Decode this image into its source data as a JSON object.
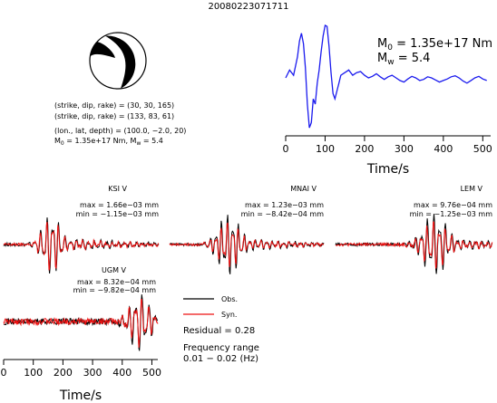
{
  "title": "20080223071711",
  "colors": {
    "observed": "#000000",
    "synthetic": "#ee1111",
    "source_time_function": "#1a1aee"
  },
  "source": {
    "plane1": "(strike, dip, rake) = (30, 30, 165)",
    "plane2": "(strike, dip, rake) = (133, 83, 61)",
    "location": "(lon., lat, depth) = (100.0, −2.0, 20)",
    "m0_prefix": "M",
    "m0_sub": "0",
    "m0_value": " = 1.35e+17 Nm, M",
    "mw_sub": "w",
    "mw_value": " = 5.4"
  },
  "stf_annotation": {
    "m0_prefix": "M",
    "m0_sub": "0",
    "m0_value": " = 1.35e+17 Nm",
    "mw_prefix": "M",
    "mw_sub": "w",
    "mw_value": " = 5.4"
  },
  "legend": {
    "observed": "Obs.",
    "synthetic": "Syn.",
    "residual": "Residual = 0.28",
    "freq_title": "Frequency range",
    "freq_value": "0.01 − 0.02 (Hz)"
  },
  "chart_data": [
    {
      "type": "line",
      "name": "source-time-function",
      "xlabel": "Time/s",
      "xlim": [
        0,
        520
      ],
      "xticks": [
        0,
        100,
        200,
        300,
        400,
        500
      ],
      "x_tick_labels": [
        "0",
        "100",
        "200",
        "300",
        "400",
        "500"
      ],
      "series": [
        {
          "x": [
            0,
            10,
            20,
            30,
            35,
            40,
            45,
            50,
            55,
            60,
            65,
            70,
            75,
            80,
            85,
            90,
            95,
            100,
            105,
            110,
            115,
            120,
            125,
            130,
            135,
            140,
            150,
            160,
            170,
            180,
            190,
            200,
            210,
            220,
            230,
            240,
            250,
            260,
            270,
            280,
            290,
            300,
            310,
            320,
            330,
            340,
            350,
            360,
            370,
            380,
            390,
            400,
            410,
            420,
            430,
            440,
            450,
            460,
            470,
            480,
            490,
            500,
            510
          ],
          "y": [
            0.0,
            0.15,
            0.05,
            0.4,
            0.7,
            0.85,
            0.65,
            0.2,
            -0.5,
            -0.95,
            -0.85,
            -0.4,
            -0.5,
            -0.1,
            0.15,
            0.5,
            0.8,
            1.0,
            0.98,
            0.6,
            0.1,
            -0.3,
            -0.4,
            -0.25,
            -0.1,
            0.05,
            0.1,
            0.15,
            0.05,
            0.1,
            0.12,
            0.05,
            0.0,
            0.03,
            0.08,
            0.02,
            -0.03,
            0.02,
            0.05,
            0.0,
            -0.05,
            -0.08,
            -0.02,
            0.03,
            0.0,
            -0.05,
            -0.03,
            0.02,
            0.0,
            -0.04,
            -0.08,
            -0.05,
            -0.02,
            0.02,
            0.04,
            0.0,
            -0.06,
            -0.1,
            -0.05,
            0.0,
            0.03,
            -0.02,
            -0.05
          ]
        }
      ]
    },
    {
      "type": "line",
      "name": "waveform-KSI-V",
      "station": "KSI V",
      "max_text": "max = 1.66e−03 mm",
      "min_text": "min = −1.15e−03 mm",
      "xlim": [
        0,
        520
      ],
      "onset": 80,
      "peak_t": 160,
      "env_width": 40,
      "period": 20,
      "obs_amp": 1.0,
      "syn_amp": 0.9,
      "phase_shift": 0.25,
      "noise": 0.1
    },
    {
      "type": "line",
      "name": "waveform-MNAI-V",
      "station": "MNAI V",
      "max_text": "max = 1.23e−03 mm",
      "min_text": "min = −8.42e−04 mm",
      "xlim": [
        0,
        520
      ],
      "onset": 110,
      "peak_t": 200,
      "env_width": 50,
      "period": 19,
      "obs_amp": 1.0,
      "syn_amp": 0.75,
      "phase_shift": 0.3,
      "noise": 0.08
    },
    {
      "type": "line",
      "name": "waveform-LEM-V",
      "station": "LEM V",
      "max_text": "max = 9.76e−04 mm",
      "min_text": "min = −1.25e−03 mm",
      "xlim": [
        0,
        520
      ],
      "onset": 200,
      "peak_t": 330,
      "env_width": 55,
      "period": 20,
      "obs_amp": 1.0,
      "syn_amp": 0.8,
      "phase_shift": 0.35,
      "noise": 0.1
    },
    {
      "type": "line",
      "name": "waveform-UGM-V",
      "station": "UGM V",
      "max_text": "max = 8.32e−04 mm",
      "min_text": "min = −9.82e−04 mm",
      "xlabel": "Time/s",
      "xlim": [
        0,
        520
      ],
      "xticks": [
        0,
        100,
        200,
        300,
        400,
        500
      ],
      "x_tick_labels": [
        "0",
        "100",
        "200",
        "300",
        "400",
        "500"
      ],
      "onset": 380,
      "peak_t": 460,
      "env_width": 45,
      "period": 22,
      "obs_amp": 1.0,
      "syn_amp": 0.85,
      "phase_shift": 0.25,
      "noise": 0.22
    }
  ]
}
